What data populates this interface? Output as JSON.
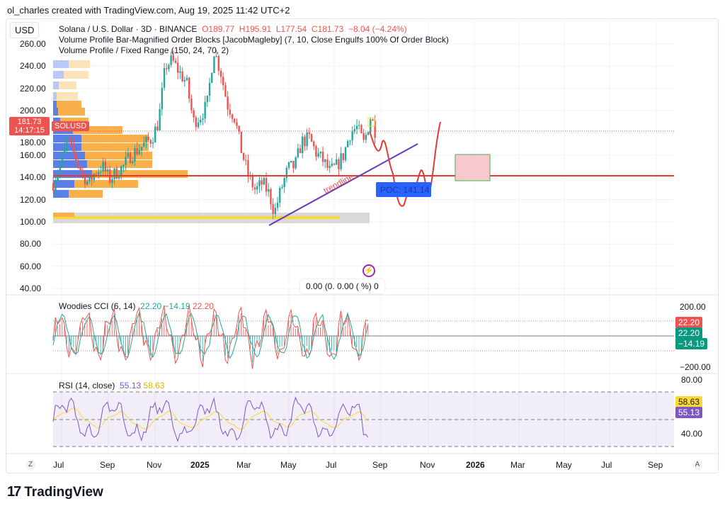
{
  "header": {
    "credit": "ol_charles created with TradingView.com, Aug 19, 2025 11:42 UTC+2",
    "currency": "USD"
  },
  "legend": {
    "symbol": "Solana / U.S. Dollar · 3D · BINANCE",
    "o": "O189.77",
    "h": "H195.91",
    "l": "L177.54",
    "c": "C181.73",
    "change": "−8.04 (−4.24%)",
    "ind1": "Volume Profile Bar-Magnified Order Blocks [JacobMagleby] (7, 10, Close Engulfs 100% Of Order Block)",
    "ind2": "Volume Profile / Fixed Range (150, 24, 70, 2)"
  },
  "price_tag": {
    "value": "181.73",
    "symbol": "SOLUSD",
    "countdown": "14:17:15"
  },
  "annotations": {
    "trendline": "trendline",
    "poc": "POC: 141.14",
    "widget": "0.00 (0.   0.00 (      %) 0"
  },
  "cci": {
    "title": "Woodies CCI (6, 14)",
    "v1": "22.20",
    "v2": "−14.19",
    "v3": "22.20",
    "axis": [
      "200.00",
      "−200.00"
    ],
    "tags": [
      "22.20",
      "22.20",
      "−14.19"
    ]
  },
  "rsi": {
    "title": "RSI (14, close)",
    "v1": "55.13",
    "v2": "58.63",
    "axis": [
      "80.00",
      "40.00"
    ],
    "tags": [
      "58.63",
      "55.13"
    ]
  },
  "footer": {
    "logo": "TradingView",
    "left_btn": "Z",
    "right_btn": "A"
  },
  "colors": {
    "up": "#26a69a",
    "down": "#ef5350",
    "rsi": "#7e57c2",
    "rsi_ma": "#fdd835",
    "poc": "#2962ff",
    "support": "#e53935"
  },
  "chart_data": {
    "type": "candlestick",
    "title": "Solana / U.S. Dollar · 3D · BINANCE",
    "ylabel": "USD",
    "ylim": [
      40,
      270
    ],
    "y_ticks": [
      "260.00",
      "240.00",
      "220.00",
      "200.00",
      "180.00",
      "160.00",
      "140.00",
      "120.00",
      "100.00",
      "80.00",
      "60.00",
      "40.00"
    ],
    "x_ticks": [
      "Jul",
      "Sep",
      "Nov",
      "2025",
      "Mar",
      "May",
      "Jul",
      "Sep",
      "Nov",
      "2026",
      "Mar",
      "May",
      "Jul",
      "Sep"
    ],
    "support_level": 141.14,
    "close_series": [
      [
        "2024-06-20",
        135
      ],
      [
        "2024-06-29",
        150
      ],
      [
        "2024-07-08",
        172
      ],
      [
        "2024-07-18",
        160
      ],
      [
        "2024-07-27",
        145
      ],
      [
        "2024-08-05",
        135
      ],
      [
        "2024-08-15",
        145
      ],
      [
        "2024-08-24",
        150
      ],
      [
        "2024-09-02",
        138
      ],
      [
        "2024-09-12",
        145
      ],
      [
        "2024-09-21",
        150
      ],
      [
        "2024-09-30",
        160
      ],
      [
        "2024-10-10",
        165
      ],
      [
        "2024-10-19",
        170
      ],
      [
        "2024-10-28",
        175
      ],
      [
        "2024-11-06",
        190
      ],
      [
        "2024-11-15",
        240
      ],
      [
        "2024-11-24",
        245
      ],
      [
        "2024-12-03",
        235
      ],
      [
        "2024-12-13",
        225
      ],
      [
        "2024-12-22",
        190
      ],
      [
        "2024-12-31",
        195
      ],
      [
        "2025-01-09",
        205
      ],
      [
        "2025-01-18",
        255
      ],
      [
        "2025-01-27",
        235
      ],
      [
        "2025-02-05",
        205
      ],
      [
        "2025-02-14",
        195
      ],
      [
        "2025-02-23",
        165
      ],
      [
        "2025-03-05",
        140
      ],
      [
        "2025-03-14",
        128
      ],
      [
        "2025-03-23",
        135
      ],
      [
        "2025-04-01",
        125
      ],
      [
        "2025-04-08",
        108
      ],
      [
        "2025-04-17",
        130
      ],
      [
        "2025-04-26",
        148
      ],
      [
        "2025-05-05",
        150
      ],
      [
        "2025-05-14",
        172
      ],
      [
        "2025-05-24",
        175
      ],
      [
        "2025-06-02",
        162
      ],
      [
        "2025-06-11",
        155
      ],
      [
        "2025-06-20",
        145
      ],
      [
        "2025-06-29",
        150
      ],
      [
        "2025-07-08",
        160
      ],
      [
        "2025-07-17",
        180
      ],
      [
        "2025-07-26",
        185
      ],
      [
        "2025-08-04",
        170
      ],
      [
        "2025-08-13",
        195
      ],
      [
        "2025-08-19",
        181.73
      ]
    ]
  }
}
